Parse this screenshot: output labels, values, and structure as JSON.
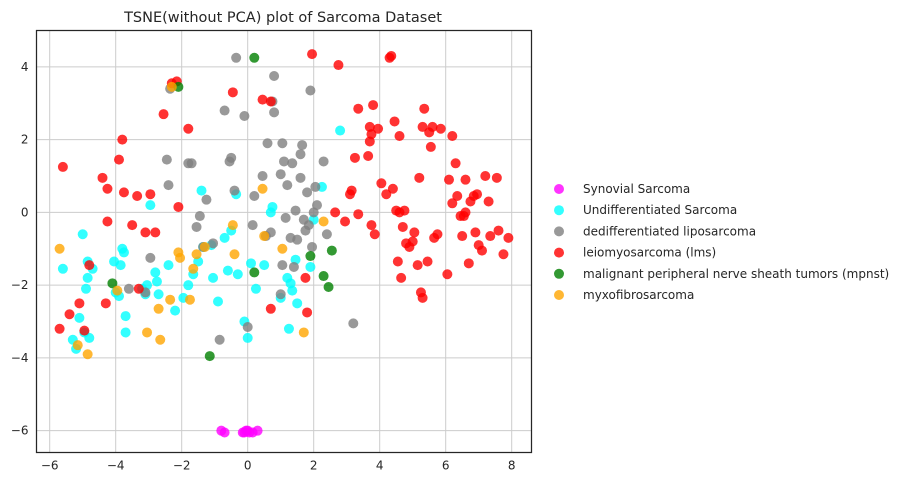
{
  "chart_data": {
    "type": "scatter",
    "title": "TSNE(without PCA) plot of Sarcoma Dataset",
    "xlabel": "",
    "ylabel": "",
    "xlim": [
      -6.4,
      8.6
    ],
    "ylim": [
      -6.6,
      5.0
    ],
    "x_ticks": [
      -6,
      -4,
      -2,
      0,
      2,
      4,
      6,
      8
    ],
    "y_ticks": [
      -6,
      -4,
      -2,
      0,
      2,
      4
    ],
    "x_tick_labels": [
      "−6",
      "−4",
      "−2",
      "0",
      "2",
      "4",
      "6",
      "8"
    ],
    "y_tick_labels": [
      "−6",
      "−4",
      "−2",
      "0",
      "2",
      "4"
    ],
    "grid": true,
    "legend_placement": "right",
    "series": [
      {
        "name": "Synovial Sarcoma",
        "color": "#ff00ff",
        "points": [
          [
            -0.8,
            -6.0
          ],
          [
            -0.7,
            -6.05
          ],
          [
            -0.15,
            -6.05
          ],
          [
            -0.05,
            -6.0
          ],
          [
            0.05,
            -6.05
          ],
          [
            0.15,
            -6.05
          ],
          [
            0.3,
            -6.0
          ],
          [
            -0.1,
            -6.05
          ],
          [
            0.0,
            -6.0
          ]
        ]
      },
      {
        "name": "Undifferentiated Sarcoma",
        "color": "#00ffff",
        "points": [
          [
            -5.6,
            -1.55
          ],
          [
            -5.3,
            -3.5
          ],
          [
            -5.2,
            -3.75
          ],
          [
            -5.1,
            -2.9
          ],
          [
            -5.0,
            -0.6
          ],
          [
            -4.95,
            -3.3
          ],
          [
            -4.9,
            -2.1
          ],
          [
            -4.85,
            -1.35
          ],
          [
            -4.8,
            -3.45
          ],
          [
            -4.85,
            -1.8
          ],
          [
            -4.7,
            -1.55
          ],
          [
            -4.05,
            -1.35
          ],
          [
            -4.0,
            -2.2
          ],
          [
            -3.9,
            -2.3
          ],
          [
            -3.85,
            -1.45
          ],
          [
            -3.8,
            -1.0
          ],
          [
            -3.75,
            -1.1
          ],
          [
            -3.7,
            -2.85
          ],
          [
            -3.7,
            -3.3
          ],
          [
            -3.2,
            -2.1
          ],
          [
            -3.1,
            -2.25
          ],
          [
            -3.05,
            -2.0
          ],
          [
            -2.95,
            0.2
          ],
          [
            -2.8,
            -1.65
          ],
          [
            -2.75,
            -1.9
          ],
          [
            -2.7,
            -2.25
          ],
          [
            -2.4,
            -1.45
          ],
          [
            -2.2,
            -2.7
          ],
          [
            -1.95,
            -2.35
          ],
          [
            -1.8,
            -2.0
          ],
          [
            -1.65,
            -1.7
          ],
          [
            -1.5,
            -1.35
          ],
          [
            -1.4,
            0.6
          ],
          [
            -1.35,
            -0.95
          ],
          [
            -1.1,
            -0.9
          ],
          [
            -1.05,
            -1.8
          ],
          [
            -0.9,
            -2.45
          ],
          [
            -0.7,
            -0.7
          ],
          [
            -0.6,
            -1.6
          ],
          [
            -0.5,
            -0.5
          ],
          [
            -0.35,
            0.5
          ],
          [
            -0.3,
            -1.7
          ],
          [
            -0.1,
            -3.0
          ],
          [
            0.0,
            -3.45
          ],
          [
            0.1,
            -1.4
          ],
          [
            0.25,
            -2.1
          ],
          [
            0.5,
            -1.45
          ],
          [
            0.7,
            0.0
          ],
          [
            0.75,
            0.15
          ],
          [
            1.0,
            -2.35
          ],
          [
            1.2,
            -1.8
          ],
          [
            1.25,
            -3.2
          ],
          [
            1.3,
            -1.95
          ],
          [
            1.35,
            -2.15
          ],
          [
            1.45,
            -1.3
          ],
          [
            1.5,
            -2.5
          ],
          [
            1.9,
            -1.5
          ],
          [
            2.0,
            -0.2
          ],
          [
            2.25,
            0.7
          ],
          [
            2.8,
            2.25
          ]
        ]
      },
      {
        "name": "dedifferentiated liposarcoma",
        "color": "#808080",
        "points": [
          [
            -3.6,
            -2.1
          ],
          [
            -3.1,
            -2.2
          ],
          [
            -2.95,
            -1.25
          ],
          [
            -2.45,
            1.45
          ],
          [
            -2.4,
            0.75
          ],
          [
            -2.35,
            3.4
          ],
          [
            -1.8,
            1.35
          ],
          [
            -1.7,
            1.35
          ],
          [
            -1.55,
            -0.4
          ],
          [
            -1.45,
            -0.1
          ],
          [
            -1.35,
            -0.95
          ],
          [
            -1.25,
            0.35
          ],
          [
            -1.05,
            -0.85
          ],
          [
            -0.85,
            -3.5
          ],
          [
            -0.7,
            2.8
          ],
          [
            -0.55,
            1.4
          ],
          [
            -0.5,
            1.5
          ],
          [
            -0.4,
            0.6
          ],
          [
            -0.35,
            4.25
          ],
          [
            -0.1,
            2.65
          ],
          [
            0.0,
            -3.15
          ],
          [
            0.15,
            -0.35
          ],
          [
            0.2,
            0.45
          ],
          [
            0.45,
            1.0
          ],
          [
            0.55,
            -0.65
          ],
          [
            0.6,
            1.9
          ],
          [
            0.7,
            -0.55
          ],
          [
            0.75,
            3.05
          ],
          [
            0.8,
            2.75
          ],
          [
            0.8,
            3.75
          ],
          [
            1.0,
            -2.25
          ],
          [
            1.0,
            1.05
          ],
          [
            1.05,
            -1.45
          ],
          [
            1.05,
            1.9
          ],
          [
            1.1,
            1.4
          ],
          [
            1.15,
            -0.15
          ],
          [
            1.2,
            0.75
          ],
          [
            1.3,
            -0.7
          ],
          [
            1.35,
            1.35
          ],
          [
            1.4,
            -1.5
          ],
          [
            1.45,
            0.05
          ],
          [
            1.5,
            -0.75
          ],
          [
            1.6,
            0.95
          ],
          [
            1.6,
            1.6
          ],
          [
            1.65,
            1.85
          ],
          [
            1.7,
            -0.2
          ],
          [
            1.75,
            -0.5
          ],
          [
            1.8,
            0.55
          ],
          [
            1.85,
            -0.35
          ],
          [
            1.9,
            3.35
          ],
          [
            1.95,
            -0.95
          ],
          [
            2.0,
            0.0
          ],
          [
            2.05,
            0.7
          ],
          [
            2.1,
            0.2
          ],
          [
            2.3,
            1.4
          ],
          [
            2.4,
            -0.6
          ],
          [
            3.2,
            -3.05
          ]
        ]
      },
      {
        "name": "leiomyosarcoma (lms)",
        "color": "#ff0000",
        "points": [
          [
            -5.7,
            -3.2
          ],
          [
            -5.6,
            1.25
          ],
          [
            -5.4,
            -2.8
          ],
          [
            -5.1,
            -2.5
          ],
          [
            -4.95,
            -3.25
          ],
          [
            -4.8,
            -1.45
          ],
          [
            -4.4,
            0.95
          ],
          [
            -4.25,
            0.65
          ],
          [
            -4.25,
            -0.25
          ],
          [
            -4.3,
            -2.5
          ],
          [
            -3.9,
            1.45
          ],
          [
            -3.8,
            2.0
          ],
          [
            -3.75,
            0.55
          ],
          [
            -3.5,
            -0.35
          ],
          [
            -3.35,
            0.45
          ],
          [
            -3.3,
            -2.1
          ],
          [
            -3.1,
            -0.55
          ],
          [
            -2.95,
            0.5
          ],
          [
            -2.8,
            -0.55
          ],
          [
            -2.55,
            2.7
          ],
          [
            -2.3,
            3.55
          ],
          [
            -2.15,
            3.6
          ],
          [
            -2.1,
            0.15
          ],
          [
            -1.8,
            2.3
          ],
          [
            -0.45,
            3.3
          ],
          [
            0.45,
            3.1
          ],
          [
            0.7,
            3.05
          ],
          [
            0.7,
            -2.65
          ],
          [
            1.75,
            -1.8
          ],
          [
            1.8,
            -2.75
          ],
          [
            1.95,
            4.35
          ],
          [
            2.65,
            0.0
          ],
          [
            2.75,
            4.05
          ],
          [
            2.95,
            -0.25
          ],
          [
            3.1,
            0.5
          ],
          [
            3.15,
            0.6
          ],
          [
            3.25,
            1.5
          ],
          [
            3.35,
            2.85
          ],
          [
            3.35,
            -0.05
          ],
          [
            3.65,
            1.55
          ],
          [
            3.7,
            1.95
          ],
          [
            3.7,
            2.35
          ],
          [
            3.75,
            -0.35
          ],
          [
            3.75,
            2.15
          ],
          [
            3.8,
            2.95
          ],
          [
            3.85,
            -0.6
          ],
          [
            3.95,
            2.3
          ],
          [
            4.05,
            0.8
          ],
          [
            4.2,
            0.5
          ],
          [
            4.3,
            4.25
          ],
          [
            4.35,
            4.3
          ],
          [
            4.4,
            0.65
          ],
          [
            4.45,
            2.5
          ],
          [
            4.5,
            0.05
          ],
          [
            4.55,
            -1.35
          ],
          [
            4.6,
            0.0
          ],
          [
            4.6,
            2.1
          ],
          [
            4.65,
            -1.8
          ],
          [
            4.7,
            -0.4
          ],
          [
            4.75,
            0.05
          ],
          [
            4.8,
            -0.85
          ],
          [
            4.9,
            -0.95
          ],
          [
            5.0,
            -0.8
          ],
          [
            5.05,
            -0.55
          ],
          [
            5.15,
            -1.45
          ],
          [
            5.2,
            0.95
          ],
          [
            5.25,
            -2.2
          ],
          [
            5.3,
            -2.35
          ],
          [
            5.3,
            2.35
          ],
          [
            5.35,
            2.85
          ],
          [
            5.45,
            -1.35
          ],
          [
            5.5,
            2.2
          ],
          [
            5.55,
            1.8
          ],
          [
            5.6,
            2.35
          ],
          [
            5.65,
            -0.7
          ],
          [
            5.75,
            -0.6
          ],
          [
            5.85,
            2.3
          ],
          [
            6.05,
            -1.7
          ],
          [
            6.1,
            0.9
          ],
          [
            6.2,
            0.25
          ],
          [
            6.2,
            2.1
          ],
          [
            6.3,
            1.35
          ],
          [
            6.35,
            0.45
          ],
          [
            6.45,
            -0.1
          ],
          [
            6.5,
            -0.65
          ],
          [
            6.55,
            -0.1
          ],
          [
            6.6,
            0.0
          ],
          [
            6.6,
            0.9
          ],
          [
            6.7,
            -1.4
          ],
          [
            6.75,
            0.3
          ],
          [
            6.85,
            0.45
          ],
          [
            6.9,
            -0.55
          ],
          [
            6.95,
            0.5
          ],
          [
            7.0,
            -0.9
          ],
          [
            7.1,
            -1.05
          ],
          [
            7.2,
            1.0
          ],
          [
            7.3,
            0.3
          ],
          [
            7.35,
            -0.65
          ],
          [
            7.55,
            0.95
          ],
          [
            7.6,
            -0.5
          ],
          [
            7.75,
            -1.15
          ],
          [
            7.9,
            -0.7
          ]
        ]
      },
      {
        "name": "malignant peripheral nerve sheath tumors (mpnst)",
        "color": "#008000",
        "points": [
          [
            -2.1,
            3.45
          ],
          [
            -4.1,
            -1.95
          ],
          [
            -1.15,
            -3.95
          ],
          [
            0.2,
            4.25
          ],
          [
            0.2,
            -1.65
          ],
          [
            1.9,
            -1.2
          ],
          [
            2.3,
            -1.75
          ],
          [
            2.55,
            -1.05
          ],
          [
            2.45,
            -2.05
          ]
        ]
      },
      {
        "name": "myxofibrosarcoma",
        "color": "#ffa500",
        "points": [
          [
            -5.7,
            -1.0
          ],
          [
            -5.15,
            -3.65
          ],
          [
            -4.85,
            -3.9
          ],
          [
            -3.95,
            -2.15
          ],
          [
            -3.05,
            -3.3
          ],
          [
            -2.7,
            -2.65
          ],
          [
            -2.65,
            -3.5
          ],
          [
            -2.35,
            -2.4
          ],
          [
            -2.1,
            -1.1
          ],
          [
            -2.05,
            -1.25
          ],
          [
            -1.75,
            -2.4
          ],
          [
            -1.65,
            -1.55
          ],
          [
            -1.55,
            -1.15
          ],
          [
            -1.3,
            -0.95
          ],
          [
            -0.45,
            -0.35
          ],
          [
            -0.4,
            -1.15
          ],
          [
            0.45,
            0.65
          ],
          [
            0.5,
            -0.65
          ],
          [
            1.05,
            -1.0
          ],
          [
            1.7,
            -3.3
          ],
          [
            2.3,
            -0.25
          ],
          [
            -2.3,
            3.45
          ]
        ]
      }
    ]
  }
}
